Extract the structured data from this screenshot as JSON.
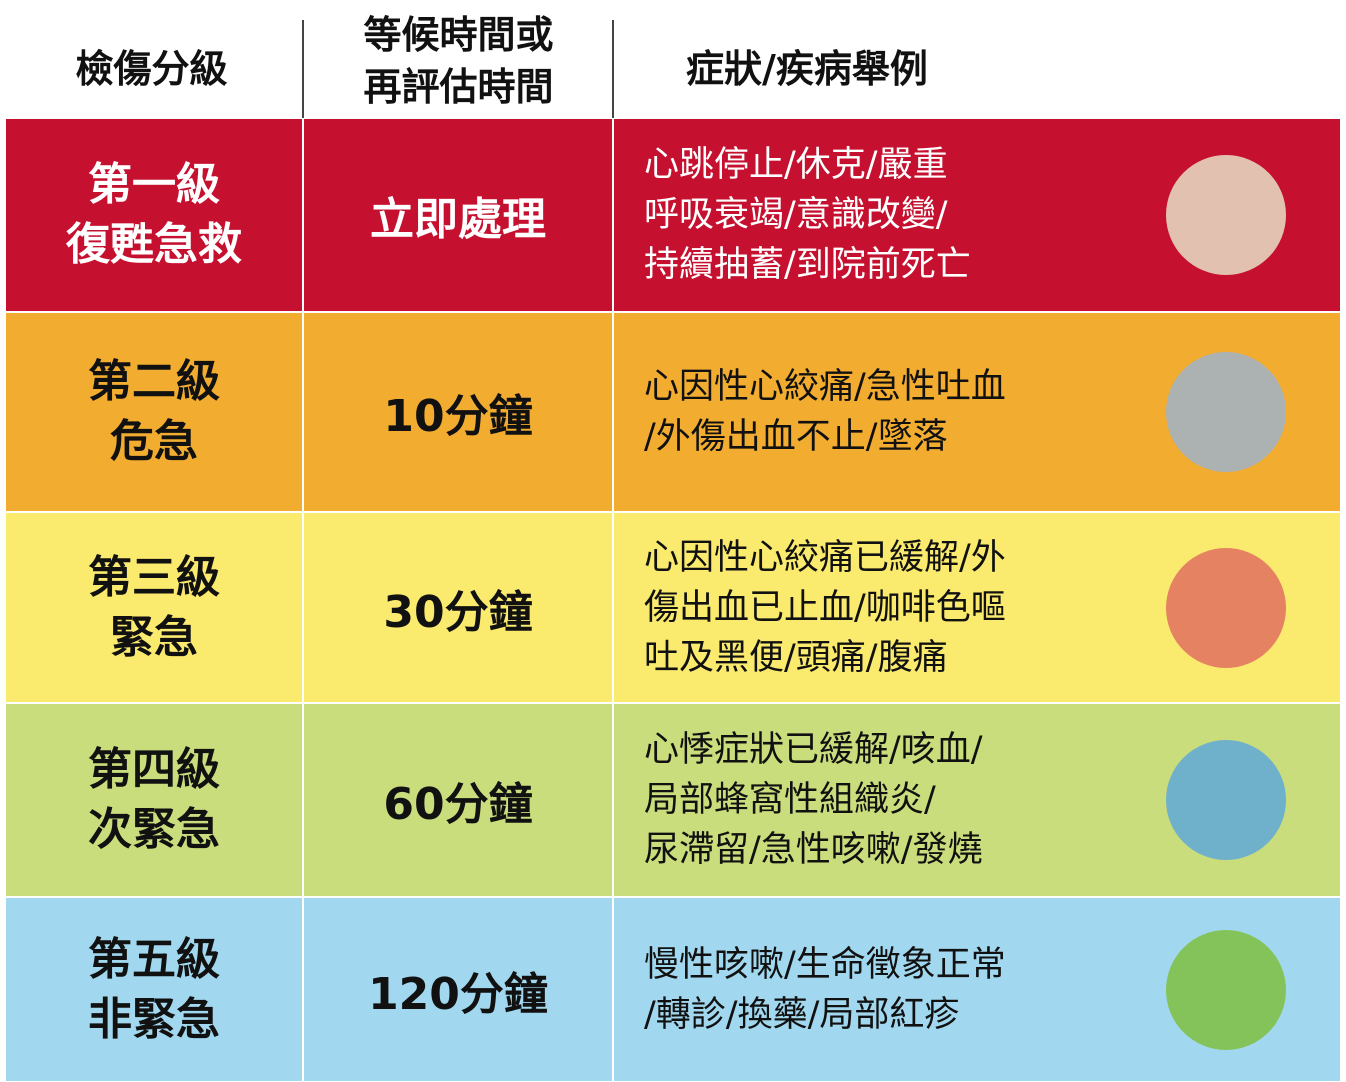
{
  "header": {
    "level": "檢傷分級",
    "wait": [
      "等候時間或",
      "再評估時間"
    ],
    "symptoms": "症狀/疾病舉例"
  },
  "table": {
    "rows": [
      {
        "level": [
          "第一級",
          "復甦急救"
        ],
        "wait": "立即處理",
        "symptoms": [
          "心跳停止/休克/嚴重",
          "呼吸衰竭/意識改變/",
          "持續抽蓄/到院前死亡"
        ]
      },
      {
        "level": [
          "第二級",
          "危急"
        ],
        "wait": "10分鐘",
        "symptoms": [
          "心因性心絞痛/急性吐血",
          "/外傷出血不止/墜落"
        ]
      },
      {
        "level": [
          "第三級",
          "緊急"
        ],
        "wait": "30分鐘",
        "symptoms": [
          "心因性心絞痛已緩解/外",
          "傷出血已止血/咖啡色嘔",
          "吐及黑便/頭痛/腹痛"
        ]
      },
      {
        "level": [
          "第四級",
          "次緊急"
        ],
        "wait": "60分鐘",
        "symptoms": [
          "心悸症狀已緩解/咳血/",
          "局部蜂窩性組織炎/",
          "尿滯留/急性咳嗽/發燒"
        ]
      },
      {
        "level": [
          "第五級",
          "非緊急"
        ],
        "wait": "120分鐘",
        "symptoms": [
          "慢性咳嗽/生命徵象正常",
          "/轉診/換藥/局部紅疹"
        ]
      }
    ]
  }
}
